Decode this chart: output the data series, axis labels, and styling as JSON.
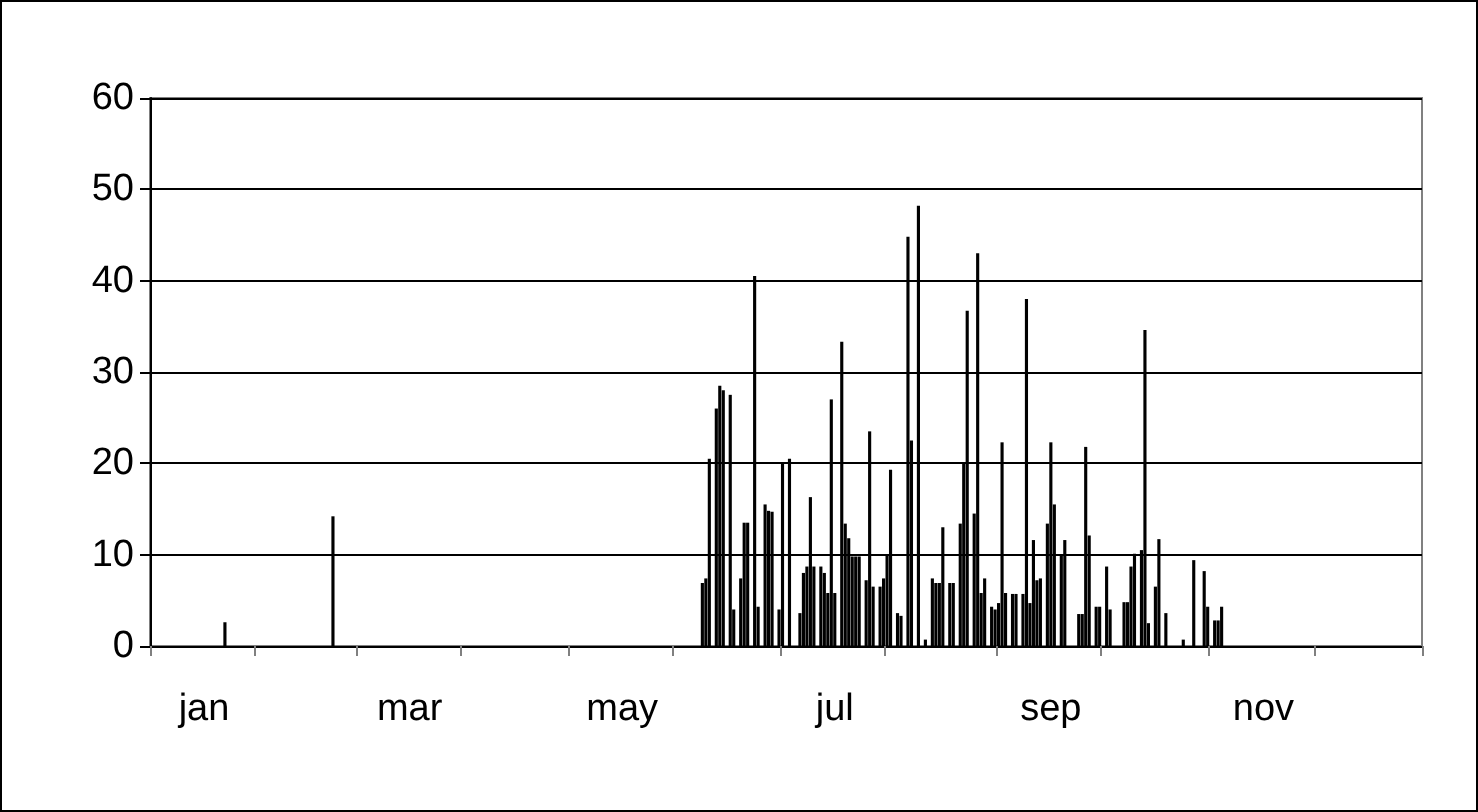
{
  "chart_data": {
    "type": "bar",
    "color": "#000000",
    "categories": [
      null,
      null,
      null,
      null,
      null,
      null,
      null,
      null,
      null,
      null,
      null,
      null,
      null,
      null,
      null,
      "jan",
      null,
      null,
      null,
      null,
      null,
      null,
      null,
      null,
      null,
      null,
      null,
      null,
      null,
      null,
      null,
      null,
      null,
      null,
      null,
      null,
      null,
      null,
      null,
      null,
      null,
      null,
      null,
      null,
      null,
      null,
      null,
      null,
      null,
      null,
      null,
      null,
      null,
      null,
      null,
      null,
      null,
      null,
      null,
      null,
      null,
      null,
      null,
      null,
      null,
      null,
      null,
      null,
      null,
      null,
      null,
      null,
      null,
      null,
      "mar",
      null,
      null,
      null,
      null,
      null,
      null,
      null,
      null,
      null,
      null,
      null,
      null,
      null,
      null,
      null,
      null,
      null,
      null,
      null,
      null,
      null,
      null,
      null,
      null,
      null,
      null,
      null,
      null,
      null,
      null,
      null,
      null,
      null,
      null,
      null,
      null,
      null,
      null,
      null,
      null,
      null,
      null,
      null,
      null,
      null,
      null,
      null,
      null,
      null,
      null,
      null,
      null,
      null,
      null,
      null,
      null,
      null,
      null,
      null,
      null,
      "may",
      null,
      null,
      null,
      null,
      null,
      null,
      null,
      null,
      null,
      null,
      null,
      null,
      null,
      null,
      null,
      null,
      null,
      null,
      null,
      null,
      null,
      null,
      null,
      null,
      null,
      null,
      null,
      null,
      null,
      null,
      null,
      null,
      null,
      null,
      null,
      null,
      null,
      null,
      null,
      null,
      null,
      null,
      null,
      null,
      null,
      null,
      null,
      null,
      null,
      null,
      null,
      null,
      null,
      null,
      null,
      null,
      null,
      null,
      null,
      null,
      "jul",
      null,
      null,
      null,
      null,
      null,
      null,
      null,
      null,
      null,
      null,
      null,
      null,
      null,
      null,
      null,
      null,
      null,
      null,
      null,
      null,
      null,
      null,
      null,
      null,
      null,
      null,
      null,
      null,
      null,
      null,
      null,
      null,
      null,
      null,
      null,
      null,
      null,
      null,
      null,
      null,
      null,
      null,
      null,
      null,
      null,
      null,
      null,
      null,
      null,
      null,
      null,
      null,
      null,
      null,
      null,
      null,
      null,
      null,
      null,
      null,
      null,
      "sep",
      null,
      null,
      null,
      null,
      null,
      null,
      null,
      null,
      null,
      null,
      null,
      null,
      null,
      null,
      null,
      null,
      null,
      null,
      null,
      null,
      null,
      null,
      null,
      null,
      null,
      null,
      null,
      null,
      null,
      null,
      null,
      null,
      null,
      null,
      null,
      null,
      null,
      null,
      null,
      null,
      null,
      null,
      null,
      null,
      null,
      null,
      null,
      null,
      null,
      null,
      null,
      null,
      null,
      null,
      null,
      null,
      null,
      null,
      null,
      null,
      "nov",
      null,
      null,
      null,
      null,
      null,
      null,
      null,
      null,
      null,
      null,
      null,
      null,
      null,
      null,
      null,
      null,
      null,
      null,
      null,
      null,
      null,
      null,
      null,
      null,
      null,
      null,
      null,
      null,
      null,
      null,
      null,
      null,
      null,
      null,
      null,
      null,
      null,
      null,
      null,
      null,
      null,
      null,
      null,
      null,
      null
    ],
    "values": [
      null,
      null,
      null,
      null,
      null,
      null,
      null,
      null,
      null,
      null,
      null,
      null,
      null,
      null,
      null,
      null,
      null,
      null,
      null,
      null,
      null,
      2.6,
      null,
      null,
      null,
      null,
      null,
      null,
      null,
      null,
      null,
      null,
      null,
      null,
      null,
      null,
      null,
      null,
      null,
      null,
      null,
      null,
      null,
      null,
      null,
      null,
      null,
      null,
      null,
      null,
      null,
      null,
      14.2,
      null,
      null,
      null,
      null,
      null,
      null,
      null,
      null,
      null,
      null,
      null,
      null,
      null,
      null,
      null,
      null,
      null,
      null,
      null,
      null,
      null,
      null,
      null,
      null,
      null,
      null,
      null,
      null,
      null,
      null,
      null,
      null,
      null,
      null,
      null,
      null,
      null,
      null,
      null,
      null,
      null,
      null,
      null,
      null,
      null,
      null,
      null,
      null,
      null,
      null,
      null,
      null,
      null,
      null,
      null,
      null,
      null,
      null,
      null,
      null,
      null,
      null,
      null,
      null,
      null,
      null,
      null,
      null,
      null,
      null,
      null,
      null,
      null,
      null,
      null,
      null,
      null,
      null,
      null,
      null,
      null,
      null,
      null,
      null,
      null,
      null,
      null,
      null,
      null,
      null,
      null,
      null,
      null,
      null,
      null,
      null,
      null,
      null,
      null,
      null,
      null,
      null,
      null,
      null,
      null,
      6.9,
      7.4,
      20.5,
      null,
      26,
      28.5,
      28,
      null,
      27.5,
      4,
      null,
      7.4,
      13.5,
      13.5,
      null,
      40.5,
      4.3,
      null,
      15.5,
      14.8,
      14.7,
      null,
      4,
      20,
      null,
      20.5,
      null,
      null,
      3.6,
      8,
      8.7,
      16.3,
      8.7,
      null,
      8.7,
      8,
      5.8,
      27,
      5.8,
      null,
      33.3,
      13.4,
      11.8,
      9.8,
      9.8,
      9.8,
      null,
      7.2,
      23.5,
      6.5,
      null,
      6.5,
      7.4,
      10,
      19.3,
      null,
      3.6,
      3.3,
      null,
      44.8,
      22.5,
      null,
      48.2,
      null,
      0.7,
      null,
      7.4,
      6.9,
      6.9,
      13,
      null,
      6.9,
      6.9,
      null,
      13.4,
      20,
      36.7,
      null,
      14.5,
      43,
      5.8,
      7.4,
      null,
      4.3,
      4,
      4.7,
      22.3,
      5.8,
      null,
      5.7,
      5.7,
      null,
      5.7,
      38,
      4.7,
      11.6,
      7.2,
      7.4,
      null,
      13.4,
      22.3,
      15.5,
      null,
      10,
      11.6,
      null,
      null,
      null,
      3.5,
      3.5,
      21.8,
      12.1,
      null,
      4.3,
      4.3,
      null,
      8.7,
      4,
      null,
      null,
      null,
      4.8,
      4.8,
      8.7,
      10.1,
      null,
      10.5,
      34.6,
      2.5,
      null,
      6.5,
      11.7,
      null,
      3.6,
      null,
      null,
      null,
      null,
      0.7,
      null,
      null,
      9.4,
      null,
      null,
      8.2,
      4.3,
      null,
      2.8,
      2.8,
      4.3,
      null,
      null,
      null,
      null,
      null,
      null,
      null,
      null,
      null,
      null,
      null,
      null,
      null,
      null,
      null,
      null,
      null,
      null,
      null,
      null,
      null,
      null,
      null,
      null,
      null,
      null,
      null,
      null,
      null,
      null,
      null,
      null,
      null,
      null,
      null,
      null,
      null,
      null,
      null,
      null,
      null,
      null,
      null,
      null,
      null,
      null,
      null,
      null,
      null,
      null,
      null,
      null,
      null,
      null,
      null,
      null,
      null
    ],
    "ylim": [
      0,
      60
    ],
    "yticks": [
      0,
      10,
      20,
      30,
      40,
      50,
      60
    ],
    "grid": "y"
  }
}
